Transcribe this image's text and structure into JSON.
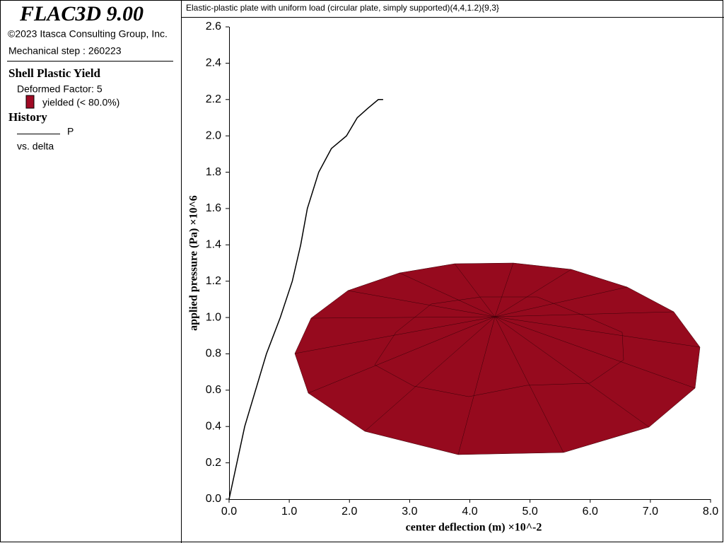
{
  "panel": {
    "product": "FLAC3D 9.00",
    "copyright": "©2023 Itasca Consulting Group, Inc.",
    "step": "Mechanical step : 260223",
    "plot_item": "Shell Plastic Yield",
    "deformed_factor": "Deformed Factor: 5",
    "yield_label": "yielded (< 80.0%)",
    "history_heading": "History",
    "history_vs": "vs. delta"
  },
  "chart_data": {
    "type": "line",
    "title": "Elastic-plastic plate with uniform load (circular plate, simply supported)(4,4,1.2){9,3}",
    "x_label": "center deflection (m) ×10^-2",
    "y_label": "applied pressure (Pa)  ×10^6",
    "x": [
      0,
      0.26,
      0.62,
      0.85,
      1.05,
      1.19,
      1.3,
      1.49,
      1.7,
      1.95,
      2.13,
      2.3,
      2.48,
      2.56
    ],
    "series": [
      {
        "name": "P",
        "color": "#000000",
        "values": [
          0,
          0.4,
          0.8,
          1.0,
          1.2,
          1.4,
          1.6,
          1.8,
          1.93,
          2.0,
          2.1,
          2.15,
          2.2,
          2.2
        ]
      }
    ],
    "xlim": [
      0,
      8.0
    ],
    "ylim": [
      0,
      2.6
    ],
    "xticks": [
      {
        "value": 0,
        "label": "0.0"
      },
      {
        "value": 1,
        "label": "1.0"
      },
      {
        "value": 2,
        "label": "2.0"
      },
      {
        "value": 3,
        "label": "3.0"
      },
      {
        "value": 4,
        "label": "4.0"
      },
      {
        "value": 5,
        "label": "5.0"
      },
      {
        "value": 6,
        "label": "6.0"
      },
      {
        "value": 7,
        "label": "7.0"
      },
      {
        "value": 8,
        "label": "8.0"
      }
    ],
    "yticks": [
      {
        "value": 0,
        "label": "0.0"
      },
      {
        "value": 0.2,
        "label": "0.2"
      },
      {
        "value": 0.4,
        "label": "0.4"
      },
      {
        "value": 0.6,
        "label": "0.6"
      },
      {
        "value": 0.8,
        "label": "0.8"
      },
      {
        "value": 1.0,
        "label": "1.0"
      },
      {
        "value": 1.2,
        "label": "1.2"
      },
      {
        "value": 1.4,
        "label": "1.4"
      },
      {
        "value": 1.6,
        "label": "1.6"
      },
      {
        "value": 1.8,
        "label": "1.8"
      },
      {
        "value": 2.0,
        "label": "2.0"
      },
      {
        "value": 2.2,
        "label": "2.2"
      },
      {
        "value": 2.4,
        "label": "2.4"
      },
      {
        "value": 2.6,
        "label": "2.6"
      }
    ]
  }
}
